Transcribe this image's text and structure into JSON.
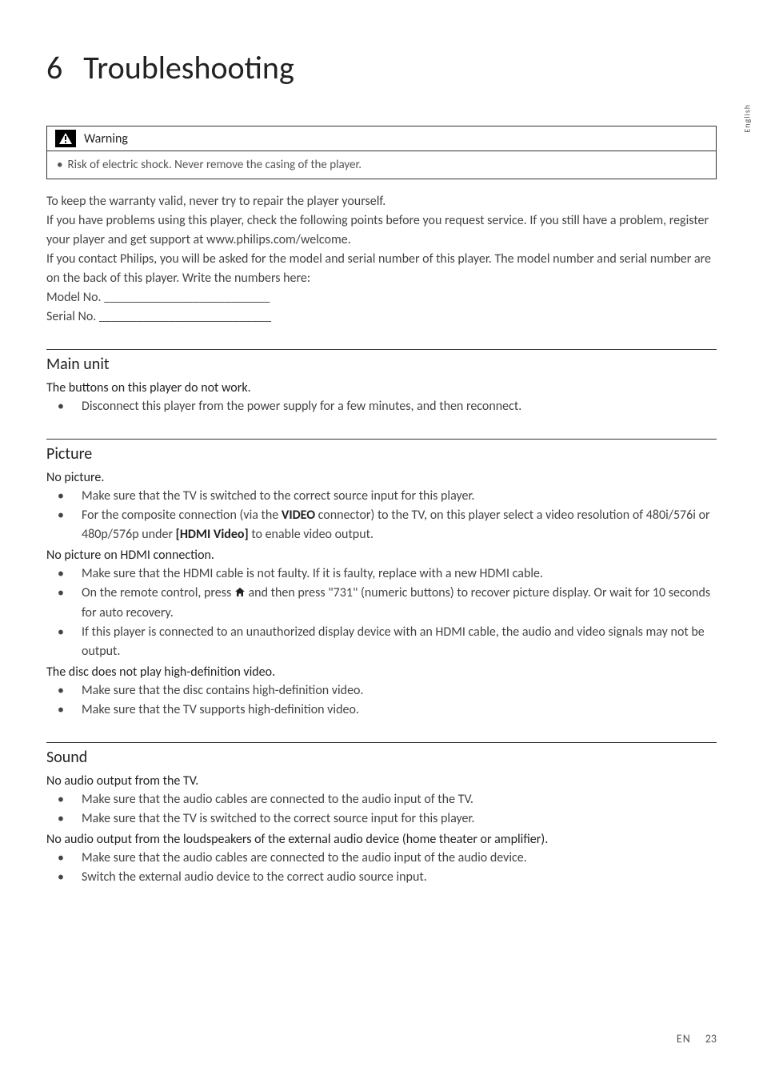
{
  "side_label": "English",
  "chapter": {
    "number": "6",
    "title": "Troubleshooting"
  },
  "warning": {
    "label": "Warning",
    "text": "Risk of electric shock. Never remove the casing of the player."
  },
  "intro": {
    "line1": "To keep the warranty valid, never try to repair the player yourself.",
    "line2": "If you have problems using this player, check the following points before you request service. If you still have a problem, register your player and get support at www.philips.com/welcome.",
    "line3": "If you contact Philips, you will be asked for the model and serial number of this player. The model number and serial number are on the back of this player. Write the numbers here:",
    "model_label": "Model No. __________________________",
    "serial_label": "Serial No. ___________________________"
  },
  "sections": [
    {
      "title": "Main unit",
      "issues": [
        {
          "title": "The buttons on this player do not work.",
          "bullets": [
            {
              "text": "Disconnect this player from the power supply for a few minutes, and then reconnect."
            }
          ]
        }
      ]
    },
    {
      "title": "Picture",
      "issues": [
        {
          "title": "No picture.",
          "bullets": [
            {
              "text": "Make sure that the TV is switched to the correct source input for this player."
            },
            {
              "pre": "For the composite connection (via the ",
              "bold1": "VIDEO",
              "mid": " connector) to the TV, on this player select a video resolution of 480i/576i or 480p/576p under ",
              "bold2": "[HDMI Video]",
              "post": " to enable video output."
            }
          ]
        },
        {
          "title": "No picture on HDMI connection.",
          "bullets": [
            {
              "text": "Make sure that the HDMI cable is not faulty. If it is faulty, replace with a new HDMI cable."
            },
            {
              "pre": "On the remote control, press ",
              "icon": "home",
              "post": " and then press \"731\" (numeric buttons) to recover picture display. Or wait for 10 seconds for auto recovery."
            },
            {
              "text": "If this player is connected to an unauthorized display device with an HDMI cable, the audio and video signals may not be output."
            }
          ]
        },
        {
          "title": "The disc does not play high-definition video.",
          "bullets": [
            {
              "text": "Make sure that the disc contains high-definition video."
            },
            {
              "text": "Make sure that the TV supports high-definition video."
            }
          ]
        }
      ]
    },
    {
      "title": "Sound",
      "issues": [
        {
          "title": "No audio output from the TV.",
          "bullets": [
            {
              "text": "Make sure that the audio cables are connected to the audio input of the TV."
            },
            {
              "text": "Make sure that the TV is switched to the correct source input for this player."
            }
          ]
        },
        {
          "title": "No audio output from the loudspeakers of the external audio device (home theater or amplifier).",
          "bullets": [
            {
              "text": "Make sure that the audio cables are connected to the audio input of the audio device."
            },
            {
              "text": "Switch the external audio device to the correct audio source input."
            }
          ]
        }
      ]
    }
  ],
  "footer": {
    "lang": "EN",
    "page": "23"
  },
  "colors": {
    "text": "#333333",
    "muted": "#555555",
    "rule": "#333333",
    "background": "#ffffff"
  },
  "typography": {
    "chapter_fontsize_pt": 30,
    "section_fontsize_pt": 15,
    "body_fontsize_pt": 12,
    "font_family": "Gill Sans"
  }
}
